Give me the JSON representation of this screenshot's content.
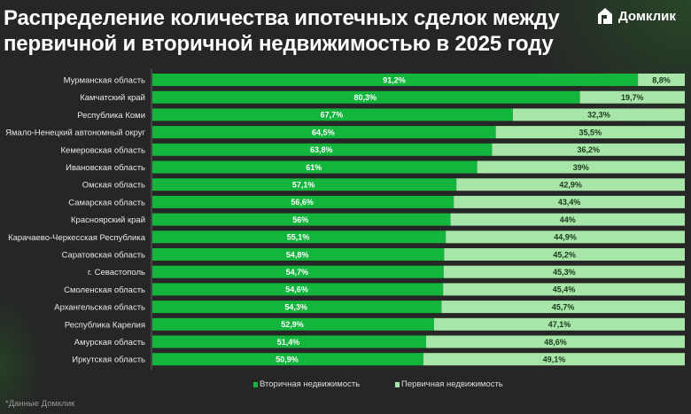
{
  "title": "Распределение количества ипотечных сделок между первичной и вторичной недвижимостью в 2025 году",
  "logo": "Домклик",
  "source": "*Данные Домклик",
  "colors": {
    "secondary": "#14b53c",
    "primary": "#a8e5a9",
    "background": "#262626"
  },
  "chart_data": {
    "type": "bar",
    "orientation": "horizontal",
    "stacked": true,
    "categories": [
      "Мурманская область",
      "Камчатский край",
      "Республика Коми",
      "Ямало-Ненецкий автономный округ",
      "Кемеровская область",
      "Ивановская область",
      "Омская область",
      "Самарская область",
      "Красноярский край",
      "Карачаево-Черкесская Республика",
      "Саратовская область",
      "г. Севастополь",
      "Смоленская область",
      "Архангельская область",
      "Республика Карелия",
      "Амурская область",
      "Иркутская область"
    ],
    "series": [
      {
        "name": "Вторичная недвижимость",
        "values": [
          91.2,
          80.3,
          67.7,
          64.5,
          63.8,
          61,
          57.1,
          56.6,
          56,
          55.1,
          54.8,
          54.7,
          54.6,
          54.3,
          52.9,
          51.4,
          50.9
        ],
        "labels": [
          "91,2%",
          "80,3%",
          "67,7%",
          "64,5%",
          "63,8%",
          "61%",
          "57,1%",
          "56,6%",
          "56%",
          "55,1%",
          "54,8%",
          "54,7%",
          "54,6%",
          "54,3%",
          "52,9%",
          "51,4%",
          "50,9%"
        ]
      },
      {
        "name": "Первичная недвижимость",
        "values": [
          8.8,
          19.7,
          32.3,
          35.5,
          36.2,
          39,
          42.9,
          43.4,
          44,
          44.9,
          45.2,
          45.3,
          45.4,
          45.7,
          47.1,
          48.6,
          49.1
        ],
        "labels": [
          "8,8%",
          "19,7%",
          "32,3%",
          "35,5%",
          "36,2%",
          "39%",
          "42,9%",
          "43,4%",
          "44%",
          "44,9%",
          "45,2%",
          "45,3%",
          "45,4%",
          "45,7%",
          "47,1%",
          "48,6%",
          "49,1%"
        ]
      }
    ],
    "xlim": [
      0,
      100
    ],
    "legend": "bottom"
  }
}
